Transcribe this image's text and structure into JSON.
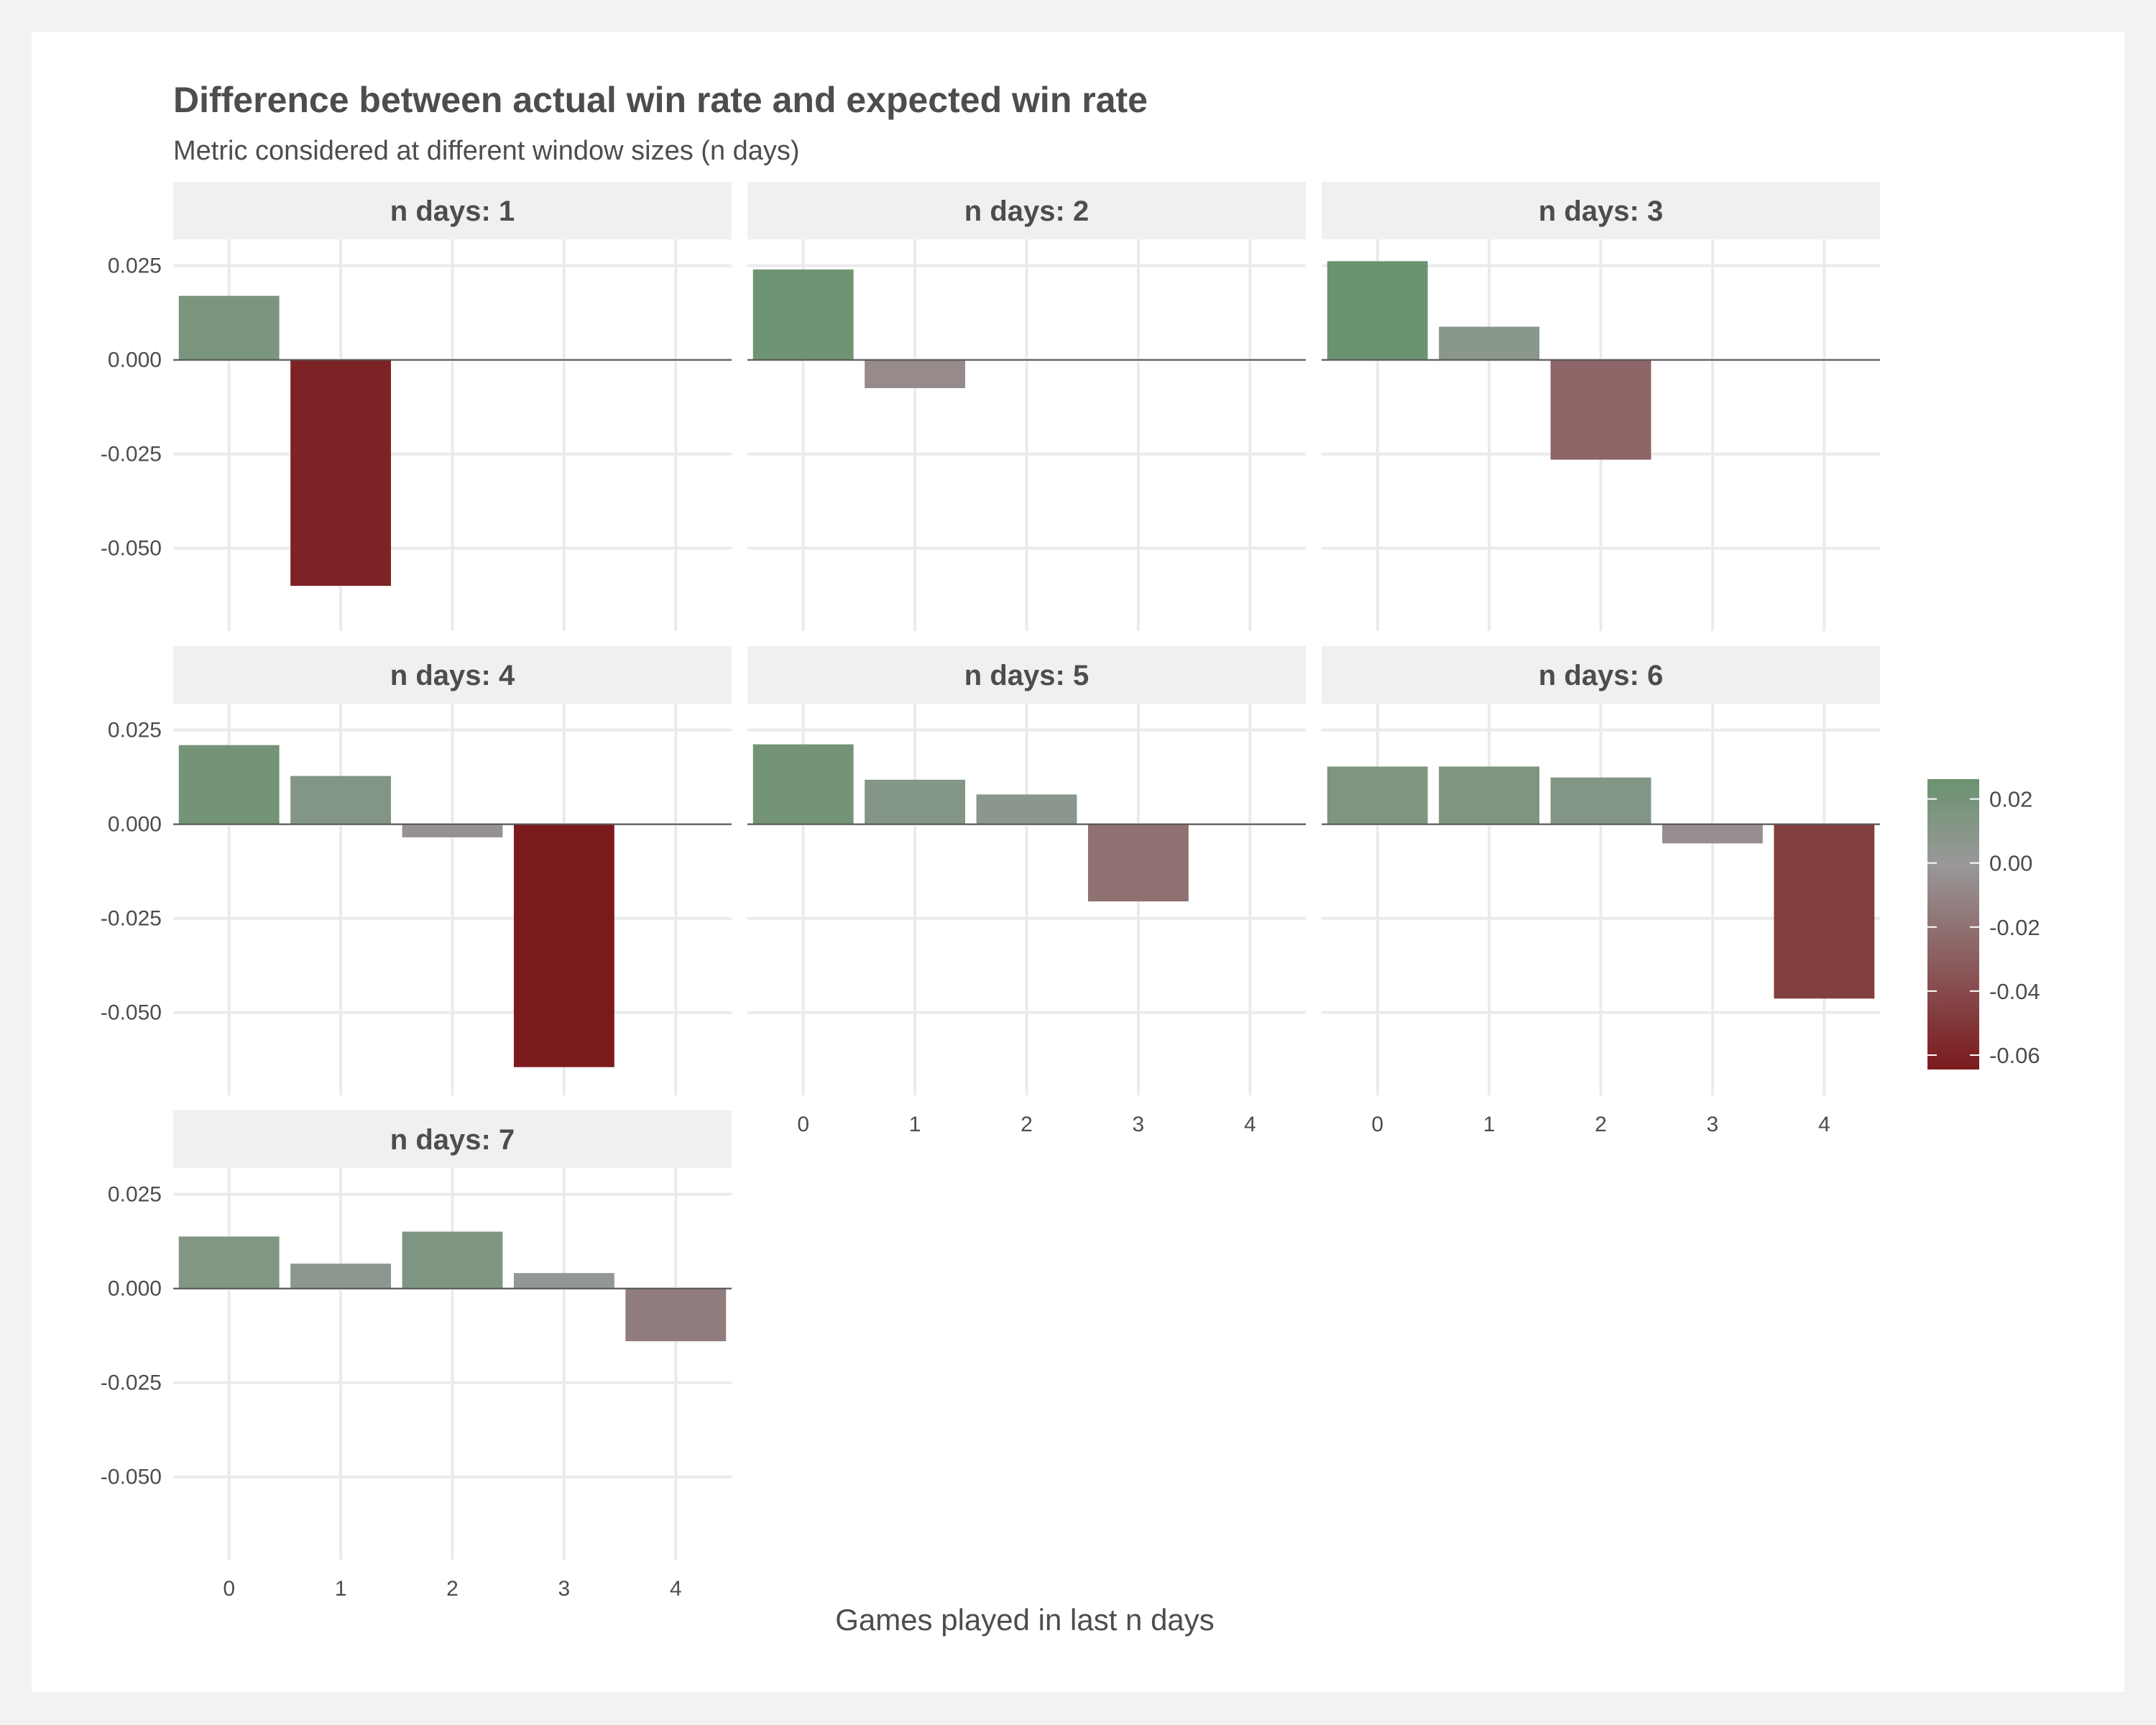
{
  "chart_data": {
    "type": "bar",
    "title": "Difference between actual win rate and expected win rate",
    "subtitle": "Metric considered at different window sizes (n days)",
    "xlabel": "Games played in last n days",
    "ylabel": "",
    "x_categories": [
      "0",
      "1",
      "2",
      "3",
      "4"
    ],
    "y_ticks": [
      0.025,
      0.0,
      -0.025,
      -0.05
    ],
    "y_tick_labels": [
      "0.025",
      "0.000",
      "-0.025",
      "-0.050"
    ],
    "ylim": [
      -0.072,
      0.032
    ],
    "grid": true,
    "panels": [
      {
        "label": "n days: 1",
        "values": [
          0.017,
          -0.06,
          null,
          null,
          null
        ]
      },
      {
        "label": "n days: 2",
        "values": [
          0.024,
          -0.0075,
          null,
          null,
          null
        ]
      },
      {
        "label": "n days: 3",
        "values": [
          0.0262,
          0.0088,
          -0.0265,
          null,
          null
        ]
      },
      {
        "label": "n days: 4",
        "values": [
          0.021,
          0.0128,
          -0.0035,
          -0.0645,
          null
        ]
      },
      {
        "label": "n days: 5",
        "values": [
          0.0212,
          0.0118,
          0.0079,
          -0.0205,
          null
        ]
      },
      {
        "label": "n days: 6",
        "values": [
          0.0153,
          0.0153,
          0.0124,
          -0.0051,
          -0.0463
        ]
      },
      {
        "label": "n days: 7",
        "values": [
          0.0138,
          0.0066,
          0.0151,
          0.0041,
          -0.014
        ]
      }
    ],
    "legend": {
      "position": "right",
      "tick_labels": [
        "0.02",
        "0.00",
        "-0.02",
        "-0.04",
        "-0.06"
      ],
      "tick_values": [
        0.02,
        0.0,
        -0.02,
        -0.04,
        -0.06
      ],
      "range": [
        -0.0645,
        0.0262
      ],
      "colors": {
        "high": "#6b9370",
        "mid": "#999999",
        "low": "#7b1a1d"
      }
    }
  }
}
